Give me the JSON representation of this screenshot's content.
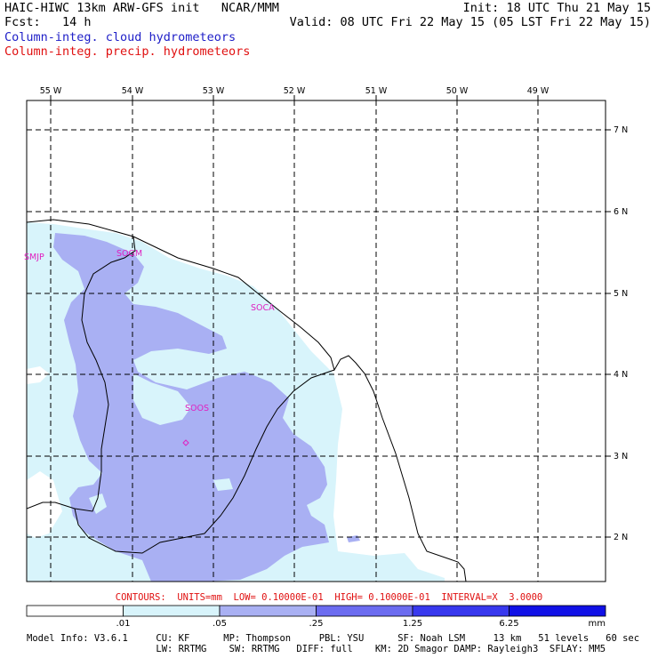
{
  "header": {
    "title": "HAIC-HIWC 13km ARW-GFS init   NCAR/MMM",
    "init": "Init: 18 UTC Thu 21 May 15",
    "fcst": "Fcst:   14 h",
    "valid": "Valid: 08 UTC Fri 22 May 15 (05 LST Fri 22 May 15)",
    "field_cloud": "Column-integ. cloud hydrometeors",
    "field_precip": "Column-integ. precip. hydrometeors"
  },
  "colors": {
    "cloud_field": "#2020c8",
    "precip_field": "#e01010",
    "level1": "#d8f4fb",
    "level2": "#a9b0f3",
    "level3": "#6c6cf0",
    "level4": "#3838ee",
    "level5": "#1010e6",
    "station": "#e020c0"
  },
  "map": {
    "lon_labels": [
      "55 W",
      "54 W",
      "53 W",
      "52 W",
      "51 W",
      "50 W",
      "49 W"
    ],
    "lat_labels": [
      "7 N",
      "6 N",
      "5 N",
      "4 N",
      "3 N",
      "2 N"
    ],
    "stations": [
      "SMJP",
      "SOGM",
      "SOCA",
      "SOOS"
    ]
  },
  "contours": "CONTOURS:  UNITS=mm  LOW= 0.10000E-01  HIGH= 0.10000E-01  INTERVAL=X  3.0000",
  "colorbar": {
    "labels": [
      ".01",
      ".05",
      ".25",
      "1.25",
      "6.25"
    ],
    "unit": "mm"
  },
  "model_info": {
    "line1": "Model Info: V3.6.1     CU: KF      MP: Thompson     PBL: YSU      SF: Noah LSM     13 km   51 levels   60 sec",
    "line2": "                       LW: RRTMG    SW: RRTMG   DIFF: full    KM: 2D Smagor DAMP: Rayleigh3  SFLAY: MM5"
  }
}
